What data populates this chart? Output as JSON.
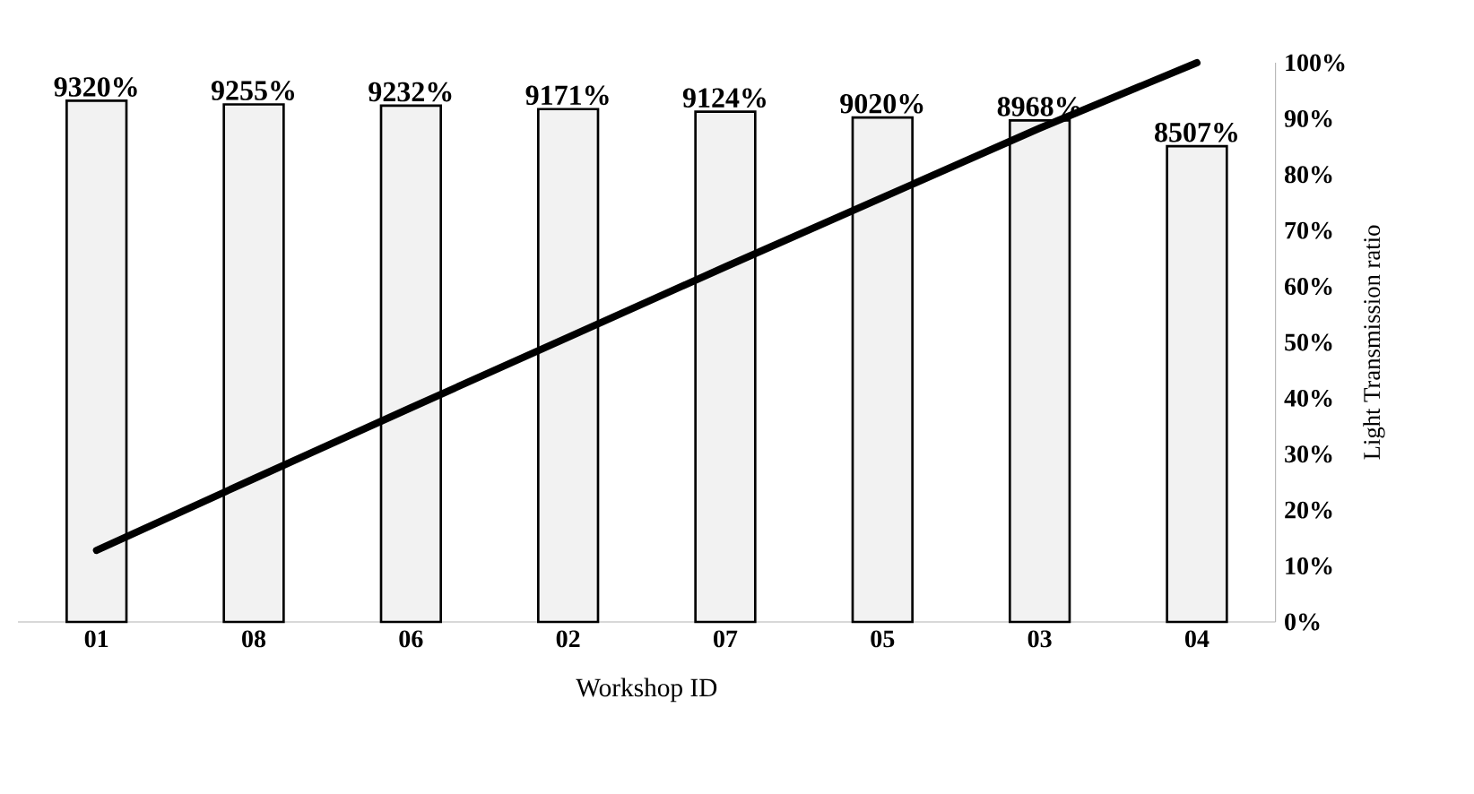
{
  "chart_data": {
    "type": "bar",
    "xlabel": "Workshop ID",
    "ylabel": "Light Transmission ratio",
    "categories": [
      "01",
      "08",
      "06",
      "02",
      "07",
      "05",
      "03",
      "04"
    ],
    "series": [
      {
        "color": "#f2f2f2",
        "values": [
          93.2,
          92.55,
          92.32,
          91.71,
          91.24,
          90.2,
          89.68,
          85.07
        ],
        "value_labels": [
          "9320%",
          "9255%",
          "9232%",
          "9171%",
          "9124%",
          "9020%",
          "8968%",
          "8507%"
        ]
      },
      {
        "type": "line",
        "color": "#000000",
        "values": [
          12.8,
          25.6,
          38.3,
          50.9,
          63.5,
          75.9,
          88.3,
          100
        ]
      }
    ],
    "ylim": [
      0,
      100
    ],
    "yticks": [
      {
        "value": 0,
        "label": "0%"
      },
      {
        "value": 10,
        "label": "10%"
      },
      {
        "value": 20,
        "label": "20%"
      },
      {
        "value": 30,
        "label": "30%"
      },
      {
        "value": 40,
        "label": "40%"
      },
      {
        "value": 50,
        "label": "50%"
      },
      {
        "value": 60,
        "label": "60%"
      },
      {
        "value": 70,
        "label": "70%"
      },
      {
        "value": 80,
        "label": "80%"
      },
      {
        "value": 90,
        "label": "90%"
      },
      {
        "value": 100,
        "label": "100%"
      }
    ]
  }
}
